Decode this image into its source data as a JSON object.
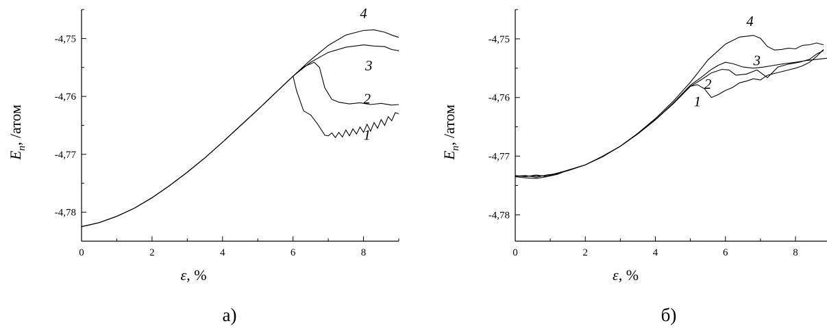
{
  "chart_data": [
    {
      "type": "line",
      "panel_label": "а)",
      "xlabel_symbol": "ε",
      "xlabel_unit": ", %",
      "ylabel_symbol": "E",
      "ylabel_subscript": "n",
      "ylabel_unit": ", /атом",
      "xlim": [
        0,
        9
      ],
      "ylim": [
        -4.785,
        -4.745
      ],
      "xticks": [
        0,
        2,
        4,
        6,
        8
      ],
      "xtick_labels": [
        "0",
        "2",
        "4",
        "6",
        "8"
      ],
      "yticks": [
        -4.78,
        -4.77,
        -4.76,
        -4.75
      ],
      "ytick_labels": [
        "-4,78",
        "-4,77",
        "-4,76",
        "-4,75"
      ],
      "grid": false,
      "series": [
        {
          "name": "1",
          "label_at": [
            8.1,
            -4.7675
          ],
          "x": [
            0,
            0.5,
            1,
            1.5,
            2,
            2.5,
            3,
            3.5,
            4,
            4.5,
            5,
            5.5,
            6,
            6.1,
            6.3,
            6.5,
            6.7,
            6.9,
            7.0,
            7.1,
            7.2,
            7.3,
            7.4,
            7.5,
            7.6,
            7.7,
            7.8,
            7.9,
            8.0,
            8.1,
            8.2,
            8.3,
            8.4,
            8.5,
            8.6,
            8.7,
            8.8,
            8.9,
            9.0
          ],
          "y": [
            -4.7825,
            -4.7818,
            -4.7807,
            -4.7793,
            -4.7775,
            -4.7754,
            -4.7731,
            -4.7706,
            -4.7679,
            -4.7651,
            -4.7623,
            -4.7594,
            -4.7565,
            -4.759,
            -4.7625,
            -4.7632,
            -4.7648,
            -4.7667,
            -4.7668,
            -4.7663,
            -4.7671,
            -4.7662,
            -4.767,
            -4.7658,
            -4.7668,
            -4.7656,
            -4.7665,
            -4.7653,
            -4.7662,
            -4.7648,
            -4.766,
            -4.7645,
            -4.7655,
            -4.764,
            -4.765,
            -4.7635,
            -4.7642,
            -4.7628,
            -4.763
          ]
        },
        {
          "name": "2",
          "label_at": [
            8.1,
            -4.7612
          ],
          "x": [
            0,
            0.5,
            1,
            1.5,
            2,
            2.5,
            3,
            3.5,
            4,
            4.5,
            5,
            5.5,
            6,
            6.3,
            6.6,
            6.75,
            6.9,
            7.1,
            7.3,
            7.6,
            7.9,
            8.2,
            8.5,
            8.8,
            9.0
          ],
          "y": [
            -4.7825,
            -4.7818,
            -4.7807,
            -4.7793,
            -4.7775,
            -4.7754,
            -4.7731,
            -4.7706,
            -4.7679,
            -4.7651,
            -4.7623,
            -4.7594,
            -4.7565,
            -4.7549,
            -4.7541,
            -4.755,
            -4.7585,
            -4.7605,
            -4.761,
            -4.7613,
            -4.7611,
            -4.7614,
            -4.7612,
            -4.7615,
            -4.7614
          ]
        },
        {
          "name": "3",
          "label_at": [
            8.15,
            -4.7555
          ],
          "x": [
            0,
            0.5,
            1,
            1.5,
            2,
            2.5,
            3,
            3.5,
            4,
            4.5,
            5,
            5.5,
            6,
            6.5,
            7.0,
            7.5,
            8.0,
            8.3,
            8.6,
            8.8,
            9.0
          ],
          "y": [
            -4.7825,
            -4.7818,
            -4.7807,
            -4.7793,
            -4.7775,
            -4.7754,
            -4.7731,
            -4.7706,
            -4.7679,
            -4.7651,
            -4.7623,
            -4.7594,
            -4.7565,
            -4.7541,
            -4.7524,
            -4.7515,
            -4.7511,
            -4.7513,
            -4.7514,
            -4.7519,
            -4.7521
          ]
        },
        {
          "name": "4",
          "label_at": [
            8.0,
            -4.7465
          ],
          "x": [
            0,
            0.5,
            1,
            1.5,
            2,
            2.5,
            3,
            3.5,
            4,
            4.5,
            5,
            5.5,
            6,
            6.5,
            7.0,
            7.5,
            8.0,
            8.3,
            8.6,
            8.8,
            9.0
          ],
          "y": [
            -4.7825,
            -4.7818,
            -4.7807,
            -4.7793,
            -4.7775,
            -4.7754,
            -4.7731,
            -4.7706,
            -4.7679,
            -4.7651,
            -4.7623,
            -4.7594,
            -4.7565,
            -4.7537,
            -4.7512,
            -4.7494,
            -4.7486,
            -4.7485,
            -4.7489,
            -4.7494,
            -4.7498
          ]
        }
      ]
    },
    {
      "type": "line",
      "panel_label": "б)",
      "xlabel_symbol": "ε",
      "xlabel_unit": ", %",
      "ylabel_symbol": "E",
      "ylabel_subscript": "n",
      "ylabel_unit": ", /атом",
      "xlim": [
        0,
        8.9
      ],
      "ylim": [
        -4.7845,
        -4.745
      ],
      "xticks": [
        0,
        2,
        4,
        6,
        8
      ],
      "xtick_labels": [
        "0",
        "2",
        "4",
        "6",
        "8"
      ],
      "yticks": [
        -4.78,
        -4.77,
        -4.76,
        -4.75
      ],
      "ytick_labels": [
        "-4,78",
        "-4,77",
        "-4,76",
        "-4,75"
      ],
      "grid": false,
      "series": [
        {
          "name": "1",
          "label_at": [
            5.2,
            -4.7615
          ],
          "x": [
            0,
            0.3,
            0.6,
            0.9,
            1.2,
            1.5,
            2,
            2.5,
            3,
            3.5,
            4,
            4.5,
            5,
            5.2,
            5.4,
            5.6,
            5.8,
            6.0,
            6.2,
            6.4,
            6.6,
            6.8,
            7.0,
            7.2,
            7.4,
            7.6,
            7.8,
            8.0,
            8.2,
            8.4,
            8.6,
            8.8
          ],
          "y": [
            -4.7735,
            -4.7737,
            -4.7738,
            -4.7735,
            -4.7729,
            -4.7725,
            -4.7715,
            -4.77,
            -4.7683,
            -4.7662,
            -4.7638,
            -4.7611,
            -4.7581,
            -4.7578,
            -4.7585,
            -4.76,
            -4.7595,
            -4.7588,
            -4.7583,
            -4.7575,
            -4.7572,
            -4.7568,
            -4.757,
            -4.7562,
            -4.7559,
            -4.7556,
            -4.7553,
            -4.755,
            -4.7546,
            -4.754,
            -4.753,
            -4.7518
          ]
        },
        {
          "name": "2",
          "label_at": [
            5.5,
            -4.7585
          ],
          "x": [
            0,
            0.3,
            0.6,
            0.9,
            1.2,
            1.5,
            2,
            2.5,
            3,
            3.5,
            4,
            4.5,
            5,
            5.3,
            5.6,
            5.9,
            6.1,
            6.3,
            6.6,
            6.9,
            7.2,
            7.5,
            7.8,
            8.1,
            8.4,
            8.6,
            8.8
          ],
          "y": [
            -4.7733,
            -4.7735,
            -4.7732,
            -4.7735,
            -4.7731,
            -4.7724,
            -4.7715,
            -4.7701,
            -4.7683,
            -4.7662,
            -4.7638,
            -4.7611,
            -4.7581,
            -4.757,
            -4.7558,
            -4.7552,
            -4.7553,
            -4.7562,
            -4.756,
            -4.7553,
            -4.7566,
            -4.7548,
            -4.7543,
            -4.754,
            -4.7535,
            -4.7526,
            -4.752
          ]
        },
        {
          "name": "3",
          "label_at": [
            6.9,
            -4.7545
          ],
          "x": [
            0,
            0.3,
            0.6,
            0.9,
            1.2,
            1.5,
            2,
            2.5,
            3,
            3.5,
            4,
            4.5,
            5,
            5.3,
            5.6,
            5.8,
            6.0,
            6.2,
            6.5,
            6.8,
            7.1,
            7.4,
            7.7,
            8.0,
            8.3,
            8.6,
            8.9
          ],
          "y": [
            -4.7734,
            -4.7733,
            -4.7736,
            -4.7732,
            -4.773,
            -4.7724,
            -4.7715,
            -4.77,
            -4.7683,
            -4.7662,
            -4.7638,
            -4.761,
            -4.7579,
            -4.7566,
            -4.7552,
            -4.7545,
            -4.754,
            -4.7542,
            -4.7548,
            -4.755,
            -4.7548,
            -4.7545,
            -4.7542,
            -4.754,
            -4.7537,
            -4.7535,
            -4.7533
          ]
        },
        {
          "name": "4",
          "label_at": [
            6.7,
            -4.7478
          ],
          "x": [
            0,
            0.3,
            0.6,
            0.9,
            1.2,
            1.5,
            2,
            2.5,
            3,
            3.5,
            4,
            4.5,
            5,
            5.5,
            6.0,
            6.4,
            6.8,
            7.0,
            7.2,
            7.4,
            7.6,
            7.8,
            8.0,
            8.2,
            8.4,
            8.6,
            8.8
          ],
          "y": [
            -4.7734,
            -4.7734,
            -4.7734,
            -4.7733,
            -4.7729,
            -4.7724,
            -4.7715,
            -4.77,
            -4.7683,
            -4.7661,
            -4.7636,
            -4.7607,
            -4.7574,
            -4.7536,
            -4.7509,
            -4.7497,
            -4.7494,
            -4.7499,
            -4.7513,
            -4.7519,
            -4.7518,
            -4.7516,
            -4.7517,
            -4.7511,
            -4.751,
            -4.7507,
            -4.751
          ]
        }
      ]
    }
  ]
}
